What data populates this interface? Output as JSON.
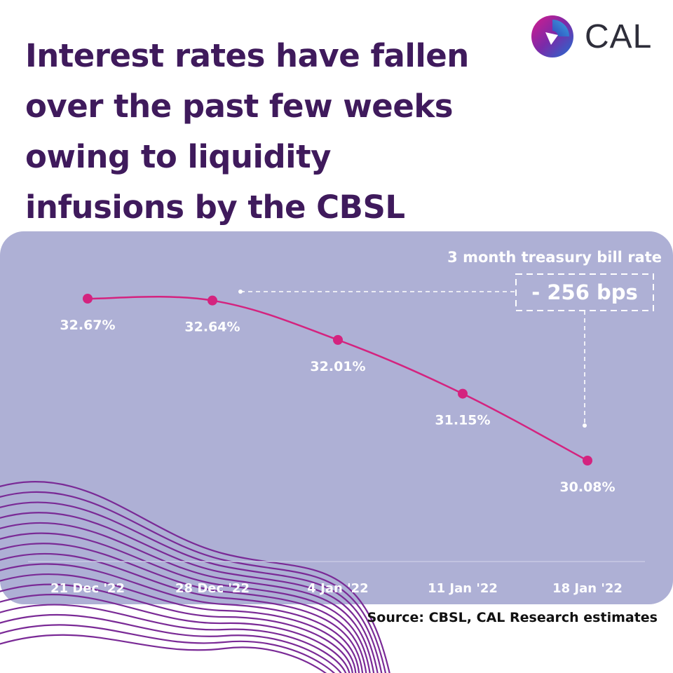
{
  "header": {
    "title_lines": [
      "Interest rates have fallen",
      "over the past few weeks",
      "owing to liquidity",
      "infusions by the CBSL"
    ]
  },
  "brand": {
    "name": "CAL",
    "logo_icon": "cal-swirl-logo-icon"
  },
  "colors": {
    "title": "#3f1a5c",
    "panel": "#aeb0d5",
    "line": "#d4237f",
    "point": "#d4237f",
    "decor_waves": "#7a2a96",
    "text_on_panel": "#ffffff"
  },
  "chart_data": {
    "type": "line",
    "title": "3 month treasury bill rate",
    "categories": [
      "21 Dec '22",
      "28 Dec '22",
      "4 Jan '22",
      "11 Jan '22",
      "18 Jan '22"
    ],
    "series": [
      {
        "values": [
          32.67,
          32.64,
          32.01,
          31.15,
          30.08
        ]
      }
    ],
    "data_labels": [
      "32.67%",
      "32.64%",
      "32.01%",
      "31.15%",
      "30.08%"
    ],
    "annotations": [
      {
        "text": "- 256 bps",
        "from_category": "28 Dec '22",
        "to_category": "18 Jan '22"
      }
    ],
    "xlabel": "",
    "ylabel": "",
    "grid": false,
    "y_axis_visible": false
  },
  "footer": {
    "source": "Source: CBSL, CAL Research estimates"
  }
}
